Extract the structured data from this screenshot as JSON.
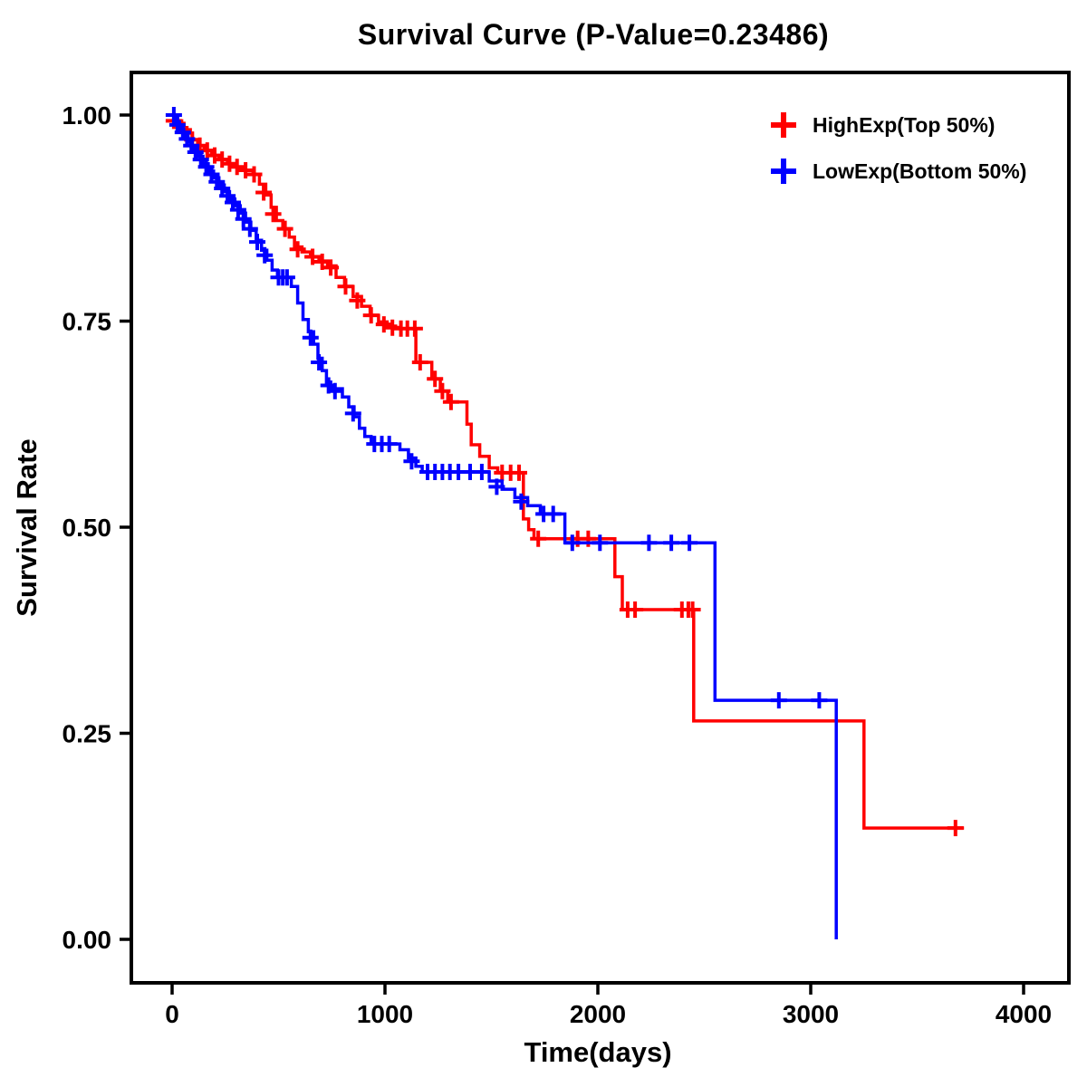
{
  "chart_data": {
    "type": "line",
    "subtype": "kaplan-meier-step",
    "title": "Survival Curve (P-Value=0.23486)",
    "xlabel": "Time(days)",
    "ylabel": "Survival Rate",
    "xlim": [
      0,
      4000
    ],
    "ylim": [
      0,
      1
    ],
    "x_ticks": [
      0,
      1000,
      2000,
      3000,
      4000
    ],
    "x_tick_labels": [
      "0",
      "1000",
      "2000",
      "3000",
      "4000"
    ],
    "y_ticks": [
      0,
      0.25,
      0.5,
      0.75,
      1
    ],
    "y_tick_labels": [
      "0.00",
      "0.25",
      "0.50",
      "0.75",
      "1.00"
    ],
    "grid": false,
    "legend_position": "top-right-inside",
    "legend_marker": "plus",
    "series": [
      {
        "id": "highexp",
        "name": "HighExp(Top 50%)",
        "color": "#FF0000",
        "end_time": 3720,
        "steps": [
          [
            0,
            1.0
          ],
          [
            20,
            0.993
          ],
          [
            45,
            0.985
          ],
          [
            70,
            0.978
          ],
          [
            95,
            0.97
          ],
          [
            120,
            0.963
          ],
          [
            150,
            0.957
          ],
          [
            185,
            0.951
          ],
          [
            220,
            0.946
          ],
          [
            260,
            0.941
          ],
          [
            300,
            0.937
          ],
          [
            340,
            0.933
          ],
          [
            380,
            0.928
          ],
          [
            410,
            0.916
          ],
          [
            440,
            0.903
          ],
          [
            465,
            0.888
          ],
          [
            490,
            0.872
          ],
          [
            520,
            0.862
          ],
          [
            550,
            0.852
          ],
          [
            575,
            0.84
          ],
          [
            610,
            0.834
          ],
          [
            650,
            0.828
          ],
          [
            690,
            0.823
          ],
          [
            730,
            0.817
          ],
          [
            770,
            0.803
          ],
          [
            810,
            0.792
          ],
          [
            850,
            0.78
          ],
          [
            890,
            0.768
          ],
          [
            930,
            0.757
          ],
          [
            970,
            0.749
          ],
          [
            1010,
            0.744
          ],
          [
            1050,
            0.741
          ],
          [
            1145,
            0.7
          ],
          [
            1220,
            0.68
          ],
          [
            1260,
            0.665
          ],
          [
            1295,
            0.652
          ],
          [
            1385,
            0.625
          ],
          [
            1405,
            0.6
          ],
          [
            1445,
            0.586
          ],
          [
            1490,
            0.572
          ],
          [
            1530,
            0.566
          ],
          [
            1650,
            0.51
          ],
          [
            1675,
            0.497
          ],
          [
            1700,
            0.486
          ],
          [
            2080,
            0.44
          ],
          [
            2115,
            0.4
          ],
          [
            2450,
            0.265
          ],
          [
            3250,
            0.135
          ]
        ],
        "censors": [
          [
            8,
            0.993
          ],
          [
            55,
            0.982
          ],
          [
            95,
            0.97
          ],
          [
            130,
            0.963
          ],
          [
            165,
            0.957
          ],
          [
            200,
            0.951
          ],
          [
            235,
            0.946
          ],
          [
            270,
            0.941
          ],
          [
            305,
            0.937
          ],
          [
            345,
            0.933
          ],
          [
            385,
            0.928
          ],
          [
            430,
            0.906
          ],
          [
            475,
            0.88
          ],
          [
            530,
            0.862
          ],
          [
            590,
            0.837
          ],
          [
            660,
            0.828
          ],
          [
            705,
            0.822
          ],
          [
            745,
            0.815
          ],
          [
            815,
            0.792
          ],
          [
            870,
            0.775
          ],
          [
            935,
            0.757
          ],
          [
            995,
            0.746
          ],
          [
            1035,
            0.742
          ],
          [
            1075,
            0.741
          ],
          [
            1105,
            0.741
          ],
          [
            1140,
            0.741
          ],
          [
            1165,
            0.7
          ],
          [
            1235,
            0.68
          ],
          [
            1270,
            0.665
          ],
          [
            1310,
            0.652
          ],
          [
            1550,
            0.566
          ],
          [
            1590,
            0.566
          ],
          [
            1630,
            0.566
          ],
          [
            1720,
            0.486
          ],
          [
            1905,
            0.486
          ],
          [
            1955,
            0.486
          ],
          [
            2140,
            0.4
          ],
          [
            2175,
            0.4
          ],
          [
            2395,
            0.4
          ],
          [
            2425,
            0.4
          ],
          [
            2445,
            0.4
          ],
          [
            3680,
            0.135
          ]
        ]
      },
      {
        "id": "lowexp",
        "name": "LowExp(Bottom 50%)",
        "color": "#0000FF",
        "end_time": 3120,
        "steps": [
          [
            0,
            1.0
          ],
          [
            15,
            0.992
          ],
          [
            35,
            0.983
          ],
          [
            55,
            0.975
          ],
          [
            75,
            0.967
          ],
          [
            95,
            0.959
          ],
          [
            120,
            0.95
          ],
          [
            145,
            0.941
          ],
          [
            170,
            0.932
          ],
          [
            195,
            0.924
          ],
          [
            220,
            0.915
          ],
          [
            245,
            0.907
          ],
          [
            270,
            0.898
          ],
          [
            295,
            0.89
          ],
          [
            320,
            0.881
          ],
          [
            345,
            0.87
          ],
          [
            370,
            0.86
          ],
          [
            395,
            0.848
          ],
          [
            420,
            0.836
          ],
          [
            445,
            0.824
          ],
          [
            470,
            0.812
          ],
          [
            495,
            0.803
          ],
          [
            560,
            0.792
          ],
          [
            590,
            0.772
          ],
          [
            615,
            0.752
          ],
          [
            640,
            0.737
          ],
          [
            665,
            0.722
          ],
          [
            685,
            0.705
          ],
          [
            705,
            0.69
          ],
          [
            725,
            0.676
          ],
          [
            745,
            0.668
          ],
          [
            800,
            0.658
          ],
          [
            830,
            0.646
          ],
          [
            855,
            0.634
          ],
          [
            880,
            0.62
          ],
          [
            905,
            0.61
          ],
          [
            935,
            0.601
          ],
          [
            1070,
            0.594
          ],
          [
            1110,
            0.584
          ],
          [
            1145,
            0.574
          ],
          [
            1175,
            0.567
          ],
          [
            1490,
            0.556
          ],
          [
            1550,
            0.546
          ],
          [
            1610,
            0.536
          ],
          [
            1670,
            0.526
          ],
          [
            1730,
            0.516
          ],
          [
            1845,
            0.481
          ],
          [
            2550,
            0.29
          ],
          [
            3120,
            0.0
          ]
        ],
        "censors": [
          [
            8,
            1.0
          ],
          [
            25,
            0.988
          ],
          [
            50,
            0.979
          ],
          [
            70,
            0.971
          ],
          [
            90,
            0.963
          ],
          [
            110,
            0.955
          ],
          [
            135,
            0.946
          ],
          [
            160,
            0.937
          ],
          [
            185,
            0.928
          ],
          [
            210,
            0.919
          ],
          [
            235,
            0.911
          ],
          [
            260,
            0.902
          ],
          [
            285,
            0.894
          ],
          [
            310,
            0.885
          ],
          [
            335,
            0.874
          ],
          [
            365,
            0.862
          ],
          [
            400,
            0.846
          ],
          [
            435,
            0.83
          ],
          [
            500,
            0.803
          ],
          [
            520,
            0.803
          ],
          [
            540,
            0.803
          ],
          [
            650,
            0.73
          ],
          [
            690,
            0.7
          ],
          [
            735,
            0.672
          ],
          [
            765,
            0.665
          ],
          [
            850,
            0.638
          ],
          [
            950,
            0.601
          ],
          [
            985,
            0.601
          ],
          [
            1020,
            0.601
          ],
          [
            1125,
            0.58
          ],
          [
            1200,
            0.567
          ],
          [
            1235,
            0.567
          ],
          [
            1270,
            0.567
          ],
          [
            1305,
            0.567
          ],
          [
            1345,
            0.567
          ],
          [
            1400,
            0.567
          ],
          [
            1455,
            0.567
          ],
          [
            1525,
            0.549
          ],
          [
            1640,
            0.531
          ],
          [
            1745,
            0.516
          ],
          [
            1790,
            0.516
          ],
          [
            1880,
            0.481
          ],
          [
            2010,
            0.481
          ],
          [
            2240,
            0.481
          ],
          [
            2345,
            0.481
          ],
          [
            2430,
            0.481
          ],
          [
            2850,
            0.29
          ],
          [
            3040,
            0.29
          ]
        ]
      }
    ]
  }
}
